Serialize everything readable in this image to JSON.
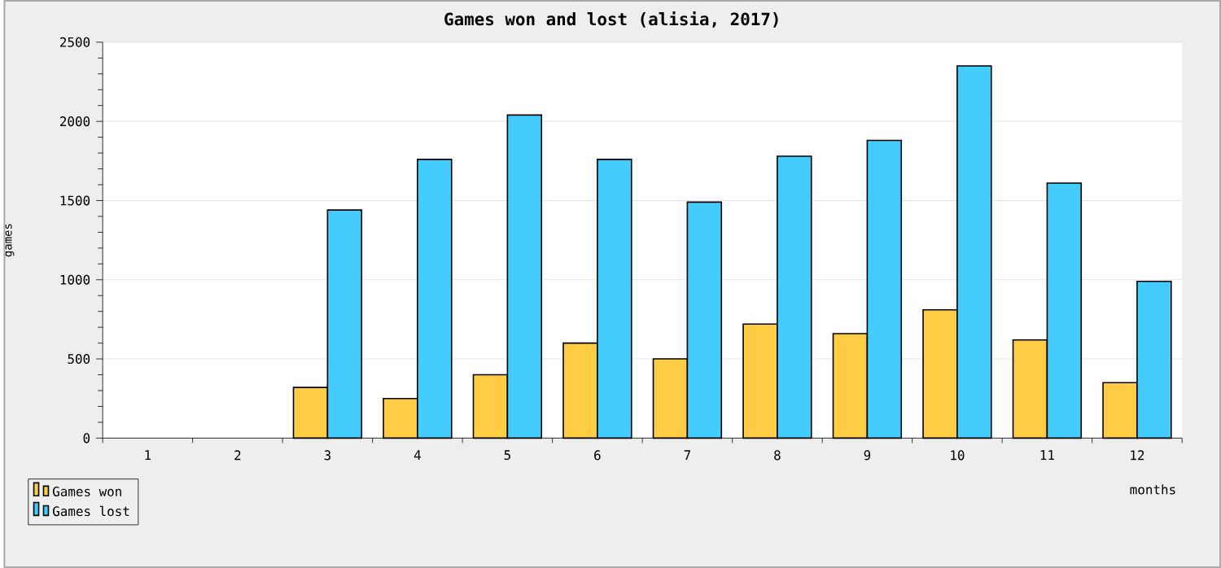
{
  "chart_data": {
    "type": "bar",
    "title": "Games won and lost (alisia, 2017)",
    "xlabel": "months",
    "ylabel": "games",
    "categories": [
      "1",
      "2",
      "3",
      "4",
      "5",
      "6",
      "7",
      "8",
      "9",
      "10",
      "11",
      "12"
    ],
    "series": [
      {
        "name": "Games won",
        "color": "#ffcc44",
        "values": [
          null,
          null,
          320,
          250,
          400,
          600,
          500,
          720,
          660,
          810,
          620,
          350
        ]
      },
      {
        "name": "Games lost",
        "color": "#44ccff",
        "values": [
          null,
          null,
          1440,
          1760,
          2040,
          1760,
          1490,
          1780,
          1880,
          2350,
          1610,
          990
        ]
      }
    ],
    "ylim": [
      0,
      2500
    ],
    "yticks": [
      0,
      500,
      1000,
      1500,
      2000,
      2500
    ],
    "grid": "y",
    "legend": "bottom left"
  }
}
